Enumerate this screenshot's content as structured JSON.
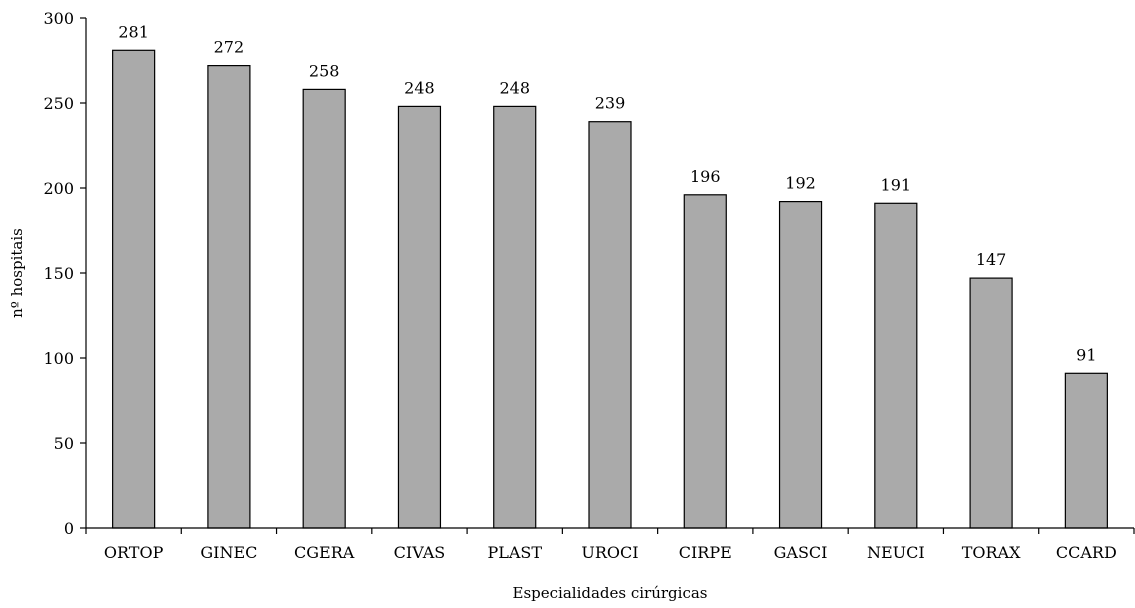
{
  "chart_data": {
    "type": "bar",
    "categories": [
      "ORTOP",
      "GINEC",
      "CGERA",
      "CIVAS",
      "PLAST",
      "UROCI",
      "CIRPE",
      "GASCI",
      "NEUCI",
      "TORAX",
      "CCARD"
    ],
    "values": [
      281,
      272,
      258,
      248,
      248,
      239,
      196,
      192,
      191,
      147,
      91
    ],
    "data_labels": [
      "281",
      "272",
      "258",
      "248",
      "248",
      "239",
      "196",
      "192",
      "191",
      "147",
      "91"
    ],
    "title": "",
    "xlabel": "Especialidades cirúrgicas",
    "ylabel": "nº hospitais",
    "ylim": [
      0,
      300
    ],
    "yticks": [
      0,
      50,
      100,
      150,
      200,
      250,
      300
    ],
    "ytick_labels": [
      "0",
      "50",
      "100",
      "150",
      "200",
      "250",
      "300"
    ],
    "grid": false,
    "legend": "none",
    "bar_color": "#aaaaaa",
    "edge_color": "#000000"
  }
}
